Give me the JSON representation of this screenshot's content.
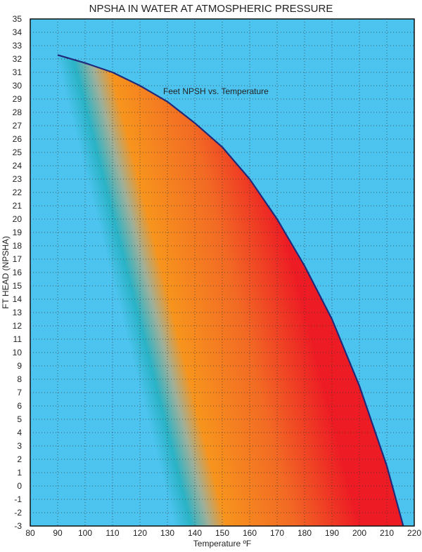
{
  "chart_data": {
    "type": "area",
    "title": "NPSHA IN WATER AT ATMOSPHERIC PRESSURE",
    "xlabel": "Temperature ºF",
    "ylabel": "FT HEAD (NPSHA)",
    "xlim": [
      80,
      220
    ],
    "ylim": [
      -3,
      35
    ],
    "xticks": [
      80,
      90,
      100,
      110,
      120,
      130,
      140,
      150,
      160,
      170,
      180,
      190,
      200,
      210,
      220
    ],
    "yticks": [
      -3,
      -2,
      -1,
      0,
      1,
      2,
      3,
      4,
      5,
      6,
      7,
      8,
      9,
      10,
      11,
      12,
      13,
      14,
      15,
      16,
      17,
      18,
      19,
      20,
      21,
      22,
      23,
      24,
      25,
      26,
      27,
      28,
      29,
      30,
      31,
      32,
      33,
      34,
      35
    ],
    "grid": true,
    "series": [
      {
        "name": "Feet NPSH vs. Temperature",
        "x": [
          90,
          100,
          110,
          120,
          130,
          140,
          150,
          160,
          170,
          180,
          190,
          200,
          210,
          216
        ],
        "y": [
          32.3,
          31.7,
          31.0,
          30.0,
          28.8,
          27.2,
          25.4,
          23.0,
          20.0,
          16.5,
          12.5,
          7.5,
          1.5,
          -3
        ]
      }
    ],
    "colors": {
      "background": "#4dc4f0",
      "line": "#1f2a7a",
      "band": "#2ab3c6",
      "orange": "#f7941d",
      "red": "#ed1c24"
    }
  }
}
